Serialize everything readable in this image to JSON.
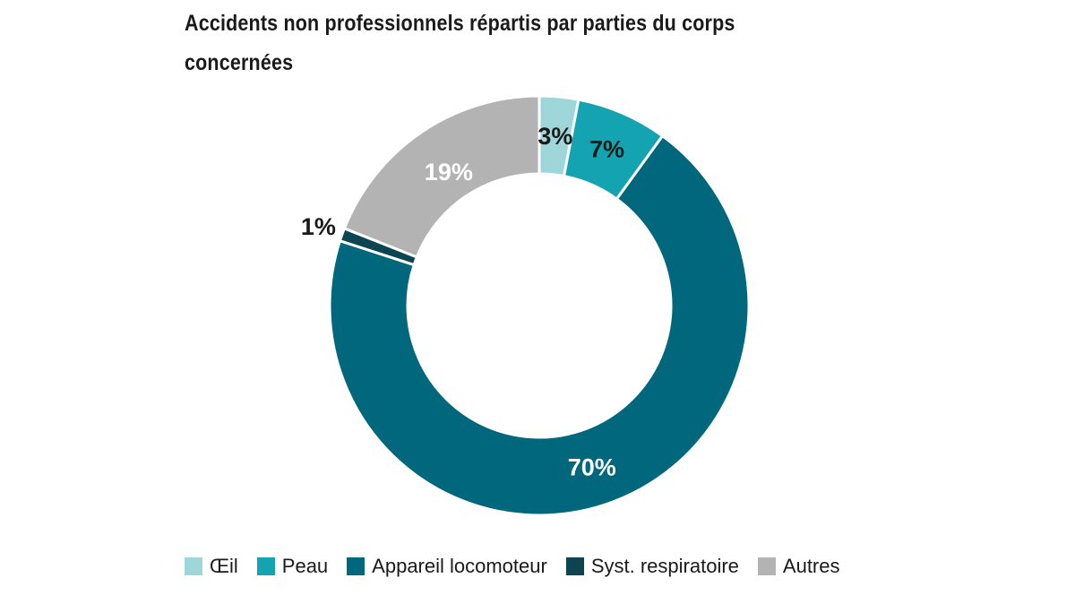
{
  "chart_data": {
    "type": "pie",
    "title": "Accidents non professionnels répartis par parties du corps concernées",
    "donut": true,
    "categories": [
      "Œil",
      "Peau",
      "Appareil locomoteur",
      "Syst. respiratoire",
      "Autres"
    ],
    "values": [
      3,
      7,
      70,
      1,
      19
    ],
    "labels": [
      "3%",
      "7%",
      "70%",
      "1%",
      "19%"
    ],
    "colors": [
      "#9fd6da",
      "#14a3b0",
      "#00677c",
      "#0c4452",
      "#b3b3b3"
    ],
    "label_colors": [
      "#1a1a1a",
      "#1a1a1a",
      "#ffffff",
      "#1a1a1a",
      "#ffffff"
    ],
    "legend_position": "bottom"
  }
}
